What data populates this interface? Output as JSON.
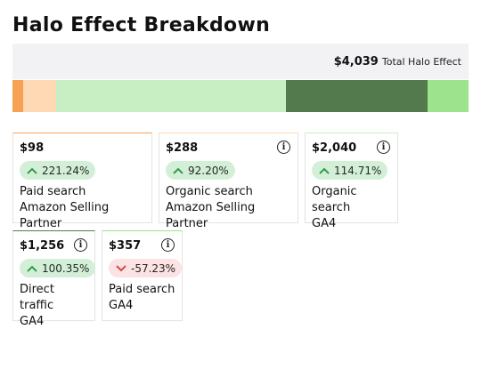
{
  "page": {
    "title": "Halo Effect Breakdown"
  },
  "total": {
    "amount": "$4,039",
    "label": "Total Halo Effect"
  },
  "breakdown_bar": [
    {
      "color": "#f7a154",
      "share": 0.024
    },
    {
      "color": "#ffd9b3",
      "share": 0.071
    },
    {
      "color": "#c8eec4",
      "share": 0.505
    },
    {
      "color": "#527a4d",
      "share": 0.311
    },
    {
      "color": "#9de28c",
      "share": 0.089
    }
  ],
  "cards": [
    {
      "value": "$98",
      "change": "221.24%",
      "direction": "up",
      "channel": "Paid search",
      "source": "Amazon Selling Partner",
      "has_info": false,
      "accent": "#f7a154"
    },
    {
      "value": "$288",
      "change": "92.20%",
      "direction": "up",
      "channel": "Organic search",
      "source": "Amazon Selling Partner",
      "has_info": true,
      "accent": "#ffd9b3"
    },
    {
      "value": "$2,040",
      "change": "114.71%",
      "direction": "up",
      "channel": "Organic search",
      "source": "GA4",
      "has_info": true,
      "accent": "#c8eec4"
    },
    {
      "value": "$1,256",
      "change": "100.35%",
      "direction": "up",
      "channel": "Direct traffic",
      "source": "GA4",
      "has_info": true,
      "accent": "#527a4d"
    },
    {
      "value": "$357",
      "change": "-57.23%",
      "direction": "down",
      "channel": "Paid search",
      "source": "GA4",
      "has_info": true,
      "accent": "#9de28c"
    }
  ],
  "icons": {
    "info": "info-icon",
    "up": "chevron-up-icon",
    "down": "chevron-down-icon"
  },
  "colors": {
    "up_badge": "#d4efd8",
    "down_badge": "#fbe3e3",
    "up_arrow": "#2e9e4a",
    "down_arrow": "#d6494a"
  }
}
